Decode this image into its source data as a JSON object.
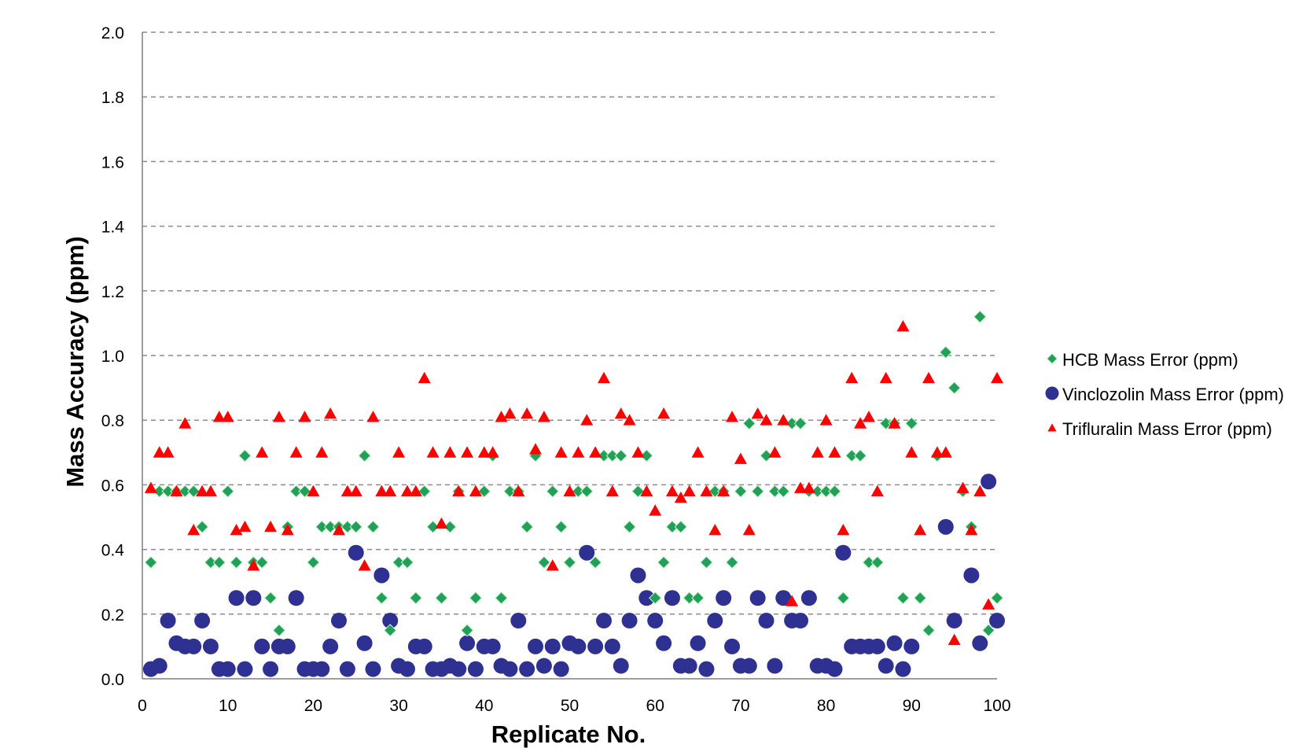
{
  "chart_data": {
    "type": "scatter",
    "title": "",
    "xlabel": "Replicate No.",
    "ylabel": "Mass Accuracy (ppm)",
    "xlim": [
      0,
      100
    ],
    "ylim": [
      0,
      2.0
    ],
    "xticks": [
      "0",
      "10",
      "20",
      "30",
      "40",
      "50",
      "60",
      "70",
      "80",
      "90",
      "100"
    ],
    "yticks": [
      "0.0",
      "0.2",
      "0.4",
      "0.6",
      "0.8",
      "1.0",
      "1.2",
      "1.4",
      "1.6",
      "1.8",
      "2.0"
    ],
    "grid": "horizontal dashed",
    "legend_position": "right",
    "x": [
      1,
      2,
      3,
      4,
      5,
      6,
      7,
      8,
      9,
      10,
      11,
      12,
      13,
      14,
      15,
      16,
      17,
      18,
      19,
      20,
      21,
      22,
      23,
      24,
      25,
      26,
      27,
      28,
      29,
      30,
      31,
      32,
      33,
      34,
      35,
      36,
      37,
      38,
      39,
      40,
      41,
      42,
      43,
      44,
      45,
      46,
      47,
      48,
      49,
      50,
      51,
      52,
      53,
      54,
      55,
      56,
      57,
      58,
      59,
      60,
      61,
      62,
      63,
      64,
      65,
      66,
      67,
      68,
      69,
      70,
      71,
      72,
      73,
      74,
      75,
      76,
      77,
      78,
      79,
      80,
      81,
      82,
      83,
      84,
      85,
      86,
      87,
      88,
      89,
      90,
      91,
      92,
      93,
      94,
      95,
      96,
      97,
      98,
      99,
      100
    ],
    "series": [
      {
        "name": "HCB Mass Error (ppm)",
        "color": "#21a05a",
        "marker": "diamond",
        "values": [
          0.36,
          0.58,
          0.58,
          0.58,
          0.58,
          0.58,
          0.47,
          0.36,
          0.36,
          0.58,
          0.36,
          0.69,
          0.36,
          0.36,
          0.25,
          0.15,
          0.47,
          0.58,
          0.58,
          0.36,
          0.47,
          0.47,
          0.47,
          0.47,
          0.47,
          0.69,
          0.47,
          0.25,
          0.15,
          0.36,
          0.36,
          0.25,
          0.58,
          0.47,
          0.25,
          0.47,
          0.58,
          0.15,
          0.25,
          0.58,
          0.69,
          0.25,
          0.58,
          0.58,
          0.47,
          0.69,
          0.36,
          0.58,
          0.47,
          0.36,
          0.58,
          0.58,
          0.36,
          0.69,
          0.69,
          0.69,
          0.47,
          0.58,
          0.69,
          0.25,
          0.36,
          0.47,
          0.47,
          0.25,
          0.25,
          0.36,
          0.58,
          0.58,
          0.36,
          0.58,
          0.79,
          0.58,
          0.69,
          0.58,
          0.58,
          0.79,
          0.79,
          0.58,
          0.58,
          0.58,
          0.58,
          0.25,
          0.69,
          0.69,
          0.36,
          0.36,
          0.79,
          0.79,
          0.25,
          0.79,
          0.25,
          0.15,
          0.69,
          1.01,
          0.9,
          0.58,
          0.47,
          1.12,
          0.15,
          0.25
        ]
      },
      {
        "name": "Vinclozolin Mass Error (ppm)",
        "color": "#2e3192",
        "marker": "circle",
        "values": [
          0.03,
          0.04,
          0.18,
          0.11,
          0.1,
          0.1,
          0.18,
          0.1,
          0.03,
          0.03,
          0.25,
          0.03,
          0.25,
          0.1,
          0.03,
          0.1,
          0.1,
          0.25,
          0.03,
          0.03,
          0.03,
          0.1,
          0.18,
          0.03,
          0.39,
          0.11,
          0.03,
          0.32,
          0.18,
          0.04,
          0.03,
          0.1,
          0.1,
          0.03,
          0.03,
          0.04,
          0.03,
          0.11,
          0.03,
          0.1,
          0.1,
          0.04,
          0.03,
          0.18,
          0.03,
          0.1,
          0.04,
          0.1,
          0.03,
          0.11,
          0.1,
          0.39,
          0.1,
          0.18,
          0.1,
          0.04,
          0.18,
          0.32,
          0.25,
          0.18,
          0.11,
          0.25,
          0.04,
          0.04,
          0.11,
          0.03,
          0.18,
          0.25,
          0.1,
          0.04,
          0.04,
          0.25,
          0.18,
          0.04,
          0.25,
          0.18,
          0.18,
          0.25,
          0.04,
          0.04,
          0.03,
          0.39,
          0.1,
          0.1,
          0.1,
          0.1,
          0.04,
          0.11,
          0.03,
          0.1,
          null,
          null,
          null,
          0.47,
          0.18,
          null,
          0.32,
          0.11,
          0.61,
          0.18
        ]
      },
      {
        "name": "Trifluralin Mass Error (ppm)",
        "color": "#ff0000",
        "marker": "triangle",
        "values": [
          0.59,
          0.7,
          0.7,
          0.58,
          0.79,
          0.46,
          0.58,
          0.58,
          0.81,
          0.81,
          0.46,
          0.47,
          0.35,
          0.7,
          0.47,
          0.81,
          0.46,
          0.7,
          0.81,
          0.58,
          0.7,
          0.82,
          0.46,
          0.58,
          0.58,
          0.35,
          0.81,
          0.58,
          0.58,
          0.7,
          0.58,
          0.58,
          0.93,
          0.7,
          0.48,
          0.7,
          0.58,
          0.7,
          0.58,
          0.7,
          0.7,
          0.81,
          0.82,
          0.58,
          0.82,
          0.71,
          0.81,
          0.35,
          0.7,
          0.58,
          0.7,
          0.8,
          0.7,
          0.93,
          0.58,
          0.82,
          0.8,
          0.7,
          0.58,
          0.52,
          0.82,
          0.58,
          0.56,
          0.58,
          0.7,
          0.58,
          0.46,
          0.58,
          0.81,
          0.68,
          0.46,
          0.82,
          0.8,
          0.7,
          0.8,
          0.24,
          0.59,
          0.59,
          0.7,
          0.8,
          0.7,
          0.46,
          0.93,
          0.79,
          0.81,
          0.58,
          0.93,
          0.79,
          1.09,
          0.7,
          0.46,
          0.93,
          0.7,
          0.7,
          0.12,
          0.59,
          0.46,
          0.58,
          0.23,
          0.93
        ]
      }
    ]
  }
}
